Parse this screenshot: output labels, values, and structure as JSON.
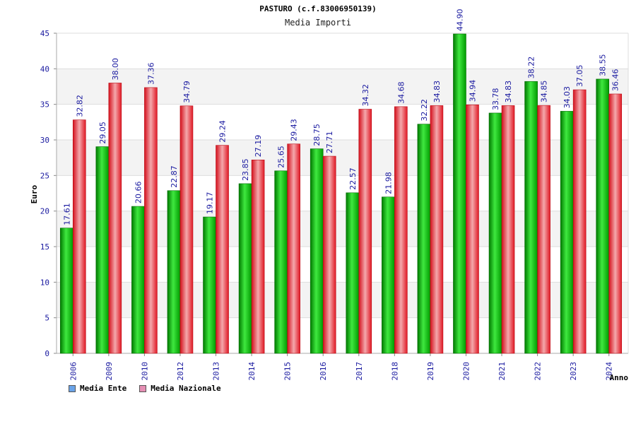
{
  "chart_data": {
    "type": "bar",
    "title": "PASTURO (c.f.83006950139)",
    "subtitle": "Media Importi",
    "ylabel": "Euro",
    "xlabel": "Anno",
    "ylim": [
      0,
      45
    ],
    "ytick_step": 5,
    "categories": [
      "2006",
      "2009",
      "2010",
      "2012",
      "2013",
      "2014",
      "2015",
      "2016",
      "2017",
      "2018",
      "2019",
      "2020",
      "2021",
      "2022",
      "2023",
      "2024"
    ],
    "series": [
      {
        "name": "Media Ente",
        "color": "#00b400",
        "swatch_color": "#6aa3e8",
        "values": [
          17.61,
          29.05,
          20.66,
          22.87,
          19.17,
          23.85,
          25.65,
          28.75,
          22.57,
          21.98,
          32.22,
          44.9,
          33.78,
          38.22,
          34.03,
          38.55
        ],
        "labels": [
          "17.61",
          "29.05",
          "20.66",
          "22.87",
          "19.17",
          "23.85",
          "25.65",
          "28.75",
          "22.57",
          "21.98",
          "32.22",
          "44.90",
          "33.78",
          "38.22",
          "34.03",
          "38.55"
        ]
      },
      {
        "name": "Media Nazionale",
        "color": "#e8202a",
        "swatch_color": "#e58fb4",
        "values": [
          32.82,
          38.0,
          37.36,
          34.79,
          29.24,
          27.19,
          29.43,
          27.71,
          34.32,
          34.68,
          34.83,
          34.94,
          34.83,
          34.85,
          37.05,
          36.46
        ],
        "labels": [
          "32.82",
          "38.00",
          "37.36",
          "34.79",
          "29.24",
          "27.19",
          "29.43",
          "27.71",
          "34.32",
          "34.68",
          "34.83",
          "34.94",
          "34.83",
          "34.85",
          "37.05",
          "36.46"
        ]
      }
    ]
  }
}
